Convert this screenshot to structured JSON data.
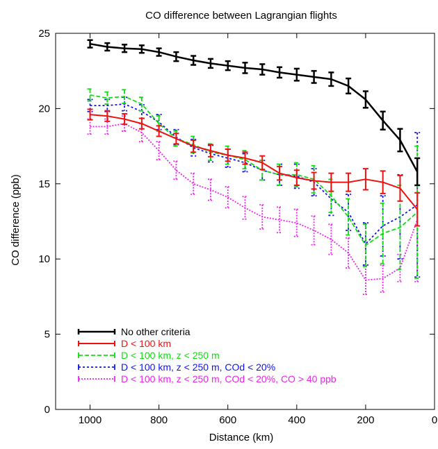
{
  "chart_data": {
    "type": "line",
    "title": "CO difference between Lagrangian flights",
    "xlabel": "Distance (km)",
    "ylabel": "CO difference (ppb)",
    "xlim": [
      1100,
      0
    ],
    "ylim": [
      0,
      25
    ],
    "x_reversed": true,
    "x_ticks": [
      1000,
      800,
      600,
      400,
      200,
      0
    ],
    "y_ticks": [
      0,
      5,
      10,
      15,
      20,
      25
    ],
    "x_tick_labels": [
      "1000",
      "800",
      "600",
      "400",
      "200",
      "0"
    ],
    "y_tick_labels": [
      "0",
      "5",
      "10",
      "15",
      "20",
      "25"
    ],
    "grid": false,
    "legend_position": "bottom-left",
    "series": [
      {
        "name": "No other criteria",
        "color": "#000000",
        "dash": "solid",
        "x": [
          1000,
          950,
          900,
          850,
          800,
          750,
          700,
          650,
          600,
          550,
          500,
          450,
          400,
          350,
          300,
          250,
          200,
          150,
          100,
          50
        ],
        "y": [
          24.3,
          24.1,
          24.0,
          23.95,
          23.75,
          23.45,
          23.2,
          23.0,
          22.85,
          22.7,
          22.6,
          22.4,
          22.25,
          22.1,
          21.95,
          21.5,
          20.6,
          19.2,
          17.9,
          15.8
        ],
        "err": [
          0.25,
          0.25,
          0.25,
          0.25,
          0.25,
          0.3,
          0.3,
          0.3,
          0.3,
          0.35,
          0.35,
          0.35,
          0.4,
          0.4,
          0.45,
          0.5,
          0.55,
          0.6,
          0.75,
          0.9
        ]
      },
      {
        "name": "D < 100 km",
        "color": "#ee1111",
        "dash": "solid",
        "x": [
          1000,
          950,
          900,
          850,
          800,
          750,
          700,
          650,
          600,
          550,
          500,
          450,
          400,
          350,
          300,
          250,
          200,
          150,
          100,
          50
        ],
        "y": [
          19.6,
          19.5,
          19.3,
          19.0,
          18.5,
          18.0,
          17.5,
          17.2,
          16.9,
          16.7,
          16.4,
          15.7,
          15.4,
          15.2,
          15.1,
          15.1,
          15.3,
          15.1,
          14.7,
          13.3
        ],
        "err": [
          0.35,
          0.35,
          0.35,
          0.35,
          0.35,
          0.35,
          0.4,
          0.4,
          0.4,
          0.4,
          0.45,
          0.45,
          0.5,
          0.55,
          0.6,
          0.6,
          0.7,
          0.75,
          0.85,
          1.1
        ]
      },
      {
        "name": "D < 100 km, z < 250 m",
        "color": "#11dd11",
        "dash": "6,3",
        "x": [
          1000,
          950,
          900,
          850,
          800,
          750,
          700,
          650,
          600,
          550,
          500,
          450,
          400,
          350,
          300,
          250,
          200,
          150,
          100,
          50
        ],
        "y": [
          20.9,
          20.7,
          20.8,
          20.3,
          19.0,
          18.0,
          17.6,
          17.1,
          16.9,
          16.6,
          15.9,
          15.6,
          15.6,
          15.3,
          14.2,
          12.8,
          10.9,
          11.7,
          12.1,
          13.1
        ],
        "err": [
          0.4,
          0.4,
          0.45,
          0.45,
          0.5,
          0.5,
          0.55,
          0.55,
          0.6,
          0.6,
          0.65,
          0.7,
          0.8,
          0.9,
          1.1,
          1.2,
          1.4,
          2.0,
          2.8,
          4.4
        ]
      },
      {
        "name": "D < 100 km, z < 250 m, COd < 20%",
        "color": "#1111ee",
        "dash": "3,3",
        "x": [
          1000,
          950,
          900,
          850,
          800,
          750,
          700,
          650,
          600,
          550,
          500,
          450,
          400,
          350,
          300,
          250,
          200,
          150,
          100,
          50
        ],
        "y": [
          20.2,
          20.2,
          20.3,
          19.8,
          19.1,
          18.1,
          17.4,
          17.0,
          16.7,
          16.4,
          15.9,
          15.6,
          15.5,
          15.1,
          14.0,
          13.1,
          11.0,
          12.2,
          12.8,
          13.6
        ],
        "err": [
          0.4,
          0.4,
          0.45,
          0.45,
          0.5,
          0.5,
          0.55,
          0.55,
          0.6,
          0.6,
          0.65,
          0.7,
          0.8,
          0.9,
          1.1,
          1.2,
          1.4,
          2.0,
          2.8,
          4.8
        ]
      },
      {
        "name": "D < 100 km, z < 250 m, COd < 20%, CO > 40 ppb",
        "color": "#ee22ee",
        "dash": "2,2",
        "x": [
          1000,
          950,
          900,
          850,
          800,
          750,
          700,
          650,
          600,
          550,
          500,
          450,
          400,
          350,
          300,
          250,
          200,
          150,
          100,
          50
        ],
        "y": [
          18.8,
          18.8,
          19.0,
          18.4,
          17.2,
          15.9,
          15.0,
          14.6,
          14.1,
          13.4,
          12.8,
          12.6,
          12.4,
          11.9,
          11.3,
          10.4,
          8.6,
          8.7,
          9.4,
          12.6
        ],
        "err": [
          0.5,
          0.5,
          0.5,
          0.6,
          0.6,
          0.6,
          0.7,
          0.7,
          0.7,
          0.75,
          0.8,
          0.85,
          0.9,
          0.95,
          1.0,
          1.0,
          0.95,
          0.9,
          0.9,
          4.1
        ]
      }
    ]
  }
}
